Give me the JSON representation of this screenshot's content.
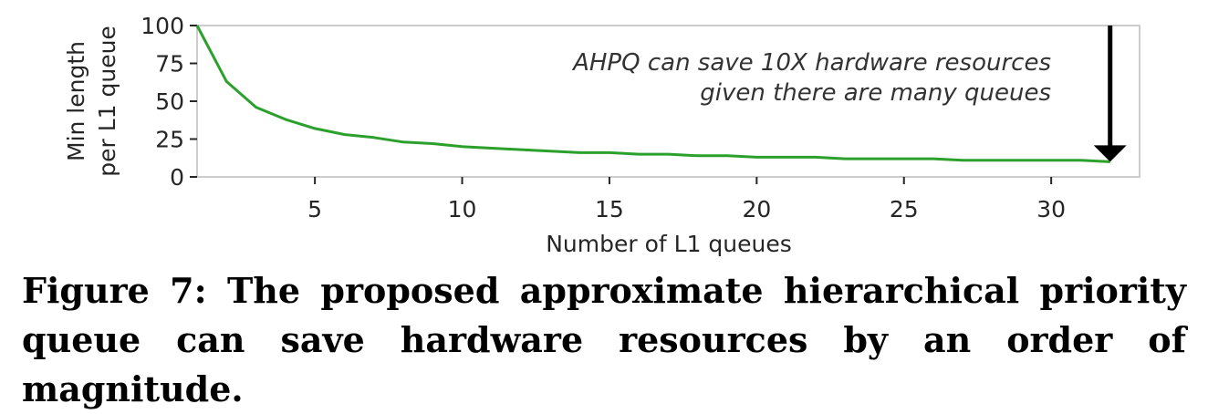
{
  "chart_data": {
    "type": "line",
    "xlabel": "Number of L1 queues",
    "ylabel_lines": [
      "Min length",
      "per L1 queue"
    ],
    "xlim": [
      1,
      33
    ],
    "ylim": [
      0,
      100
    ],
    "xticks": [
      5,
      10,
      15,
      20,
      25,
      30
    ],
    "yticks": [
      0,
      25,
      50,
      75,
      100
    ],
    "grid": false,
    "series": [
      {
        "color": "#2ca02c",
        "x": [
          1,
          2,
          3,
          4,
          5,
          6,
          7,
          8,
          9,
          10,
          11,
          12,
          13,
          14,
          15,
          16,
          17,
          18,
          19,
          20,
          21,
          22,
          23,
          24,
          25,
          26,
          27,
          28,
          29,
          30,
          31,
          32
        ],
        "values": [
          100,
          63,
          46,
          38,
          32,
          28,
          26,
          23,
          22,
          20,
          19,
          18,
          17,
          16,
          16,
          15,
          15,
          14,
          14,
          13,
          13,
          13,
          12,
          12,
          12,
          12,
          11,
          11,
          11,
          11,
          11,
          10
        ]
      }
    ],
    "annotation": {
      "lines": [
        "AHPQ can save 10X hardware resources",
        "given there are many queues"
      ],
      "arrow_x": 32,
      "arrow_from_y": 100,
      "arrow_to_y": 10
    }
  },
  "caption": "Figure 7: The proposed approximate hierarchical priority queue can save hardware resources by an order of magnitude."
}
